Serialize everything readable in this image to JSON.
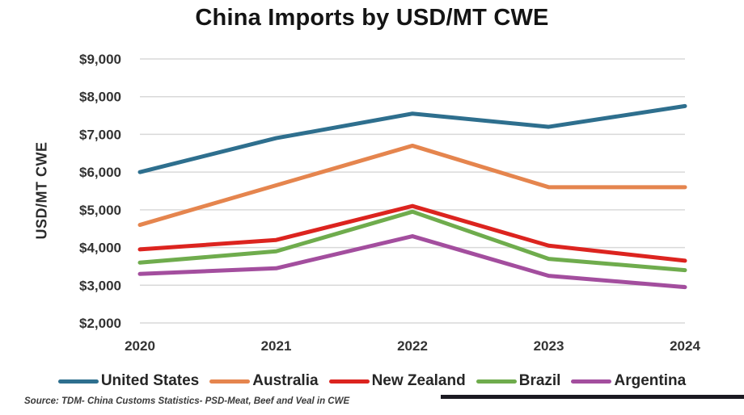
{
  "title": "China Imports by USD/MT CWE",
  "y_axis": {
    "label": "USD/MT CWE",
    "ticks": [
      {
        "value": 9000,
        "label": "$9,000"
      },
      {
        "value": 8000,
        "label": "$8,000"
      },
      {
        "value": 7000,
        "label": "$7,000"
      },
      {
        "value": 6000,
        "label": "$6,000"
      },
      {
        "value": 5000,
        "label": "$5,000"
      },
      {
        "value": 4000,
        "label": "$4,000"
      },
      {
        "value": 3000,
        "label": "$3,000"
      },
      {
        "value": 2000,
        "label": "$2,000"
      }
    ]
  },
  "x_axis": {
    "categories": [
      "2020",
      "2021",
      "2022",
      "2023",
      "2024"
    ]
  },
  "chart_data": {
    "type": "line",
    "title": "China Imports by USD/MT CWE",
    "xlabel": "",
    "ylabel": "USD/MT CWE",
    "x": [
      "2020",
      "2021",
      "2022",
      "2023",
      "2024"
    ],
    "ylim": [
      2000,
      9000
    ],
    "ytick_step": 1000,
    "grid": "horizontal",
    "legend_position": "bottom",
    "series": [
      {
        "name": "United States",
        "color": "#2E6F8E",
        "values": [
          6000,
          6900,
          7550,
          7200,
          7750
        ]
      },
      {
        "name": "Australia",
        "color": "#E5854E",
        "values": [
          4600,
          5650,
          6700,
          5600,
          5600
        ]
      },
      {
        "name": "New Zealand",
        "color": "#DC241F",
        "values": [
          3950,
          4200,
          5100,
          4050,
          3650
        ]
      },
      {
        "name": "Brazil",
        "color": "#6FAC4D",
        "values": [
          3600,
          3900,
          4950,
          3700,
          3400
        ]
      },
      {
        "name": "Argentina",
        "color": "#A34E9E",
        "values": [
          3300,
          3450,
          4300,
          3250,
          2950
        ]
      }
    ]
  },
  "source": "Source: TDM- China Customs Statistics- PSD-Meat, Beef and Veal in CWE",
  "colors": {
    "gridline": "#D9D9D9",
    "tick_text": "#333333",
    "title_text": "#141414",
    "bottom_strip": "#1B1A21"
  }
}
